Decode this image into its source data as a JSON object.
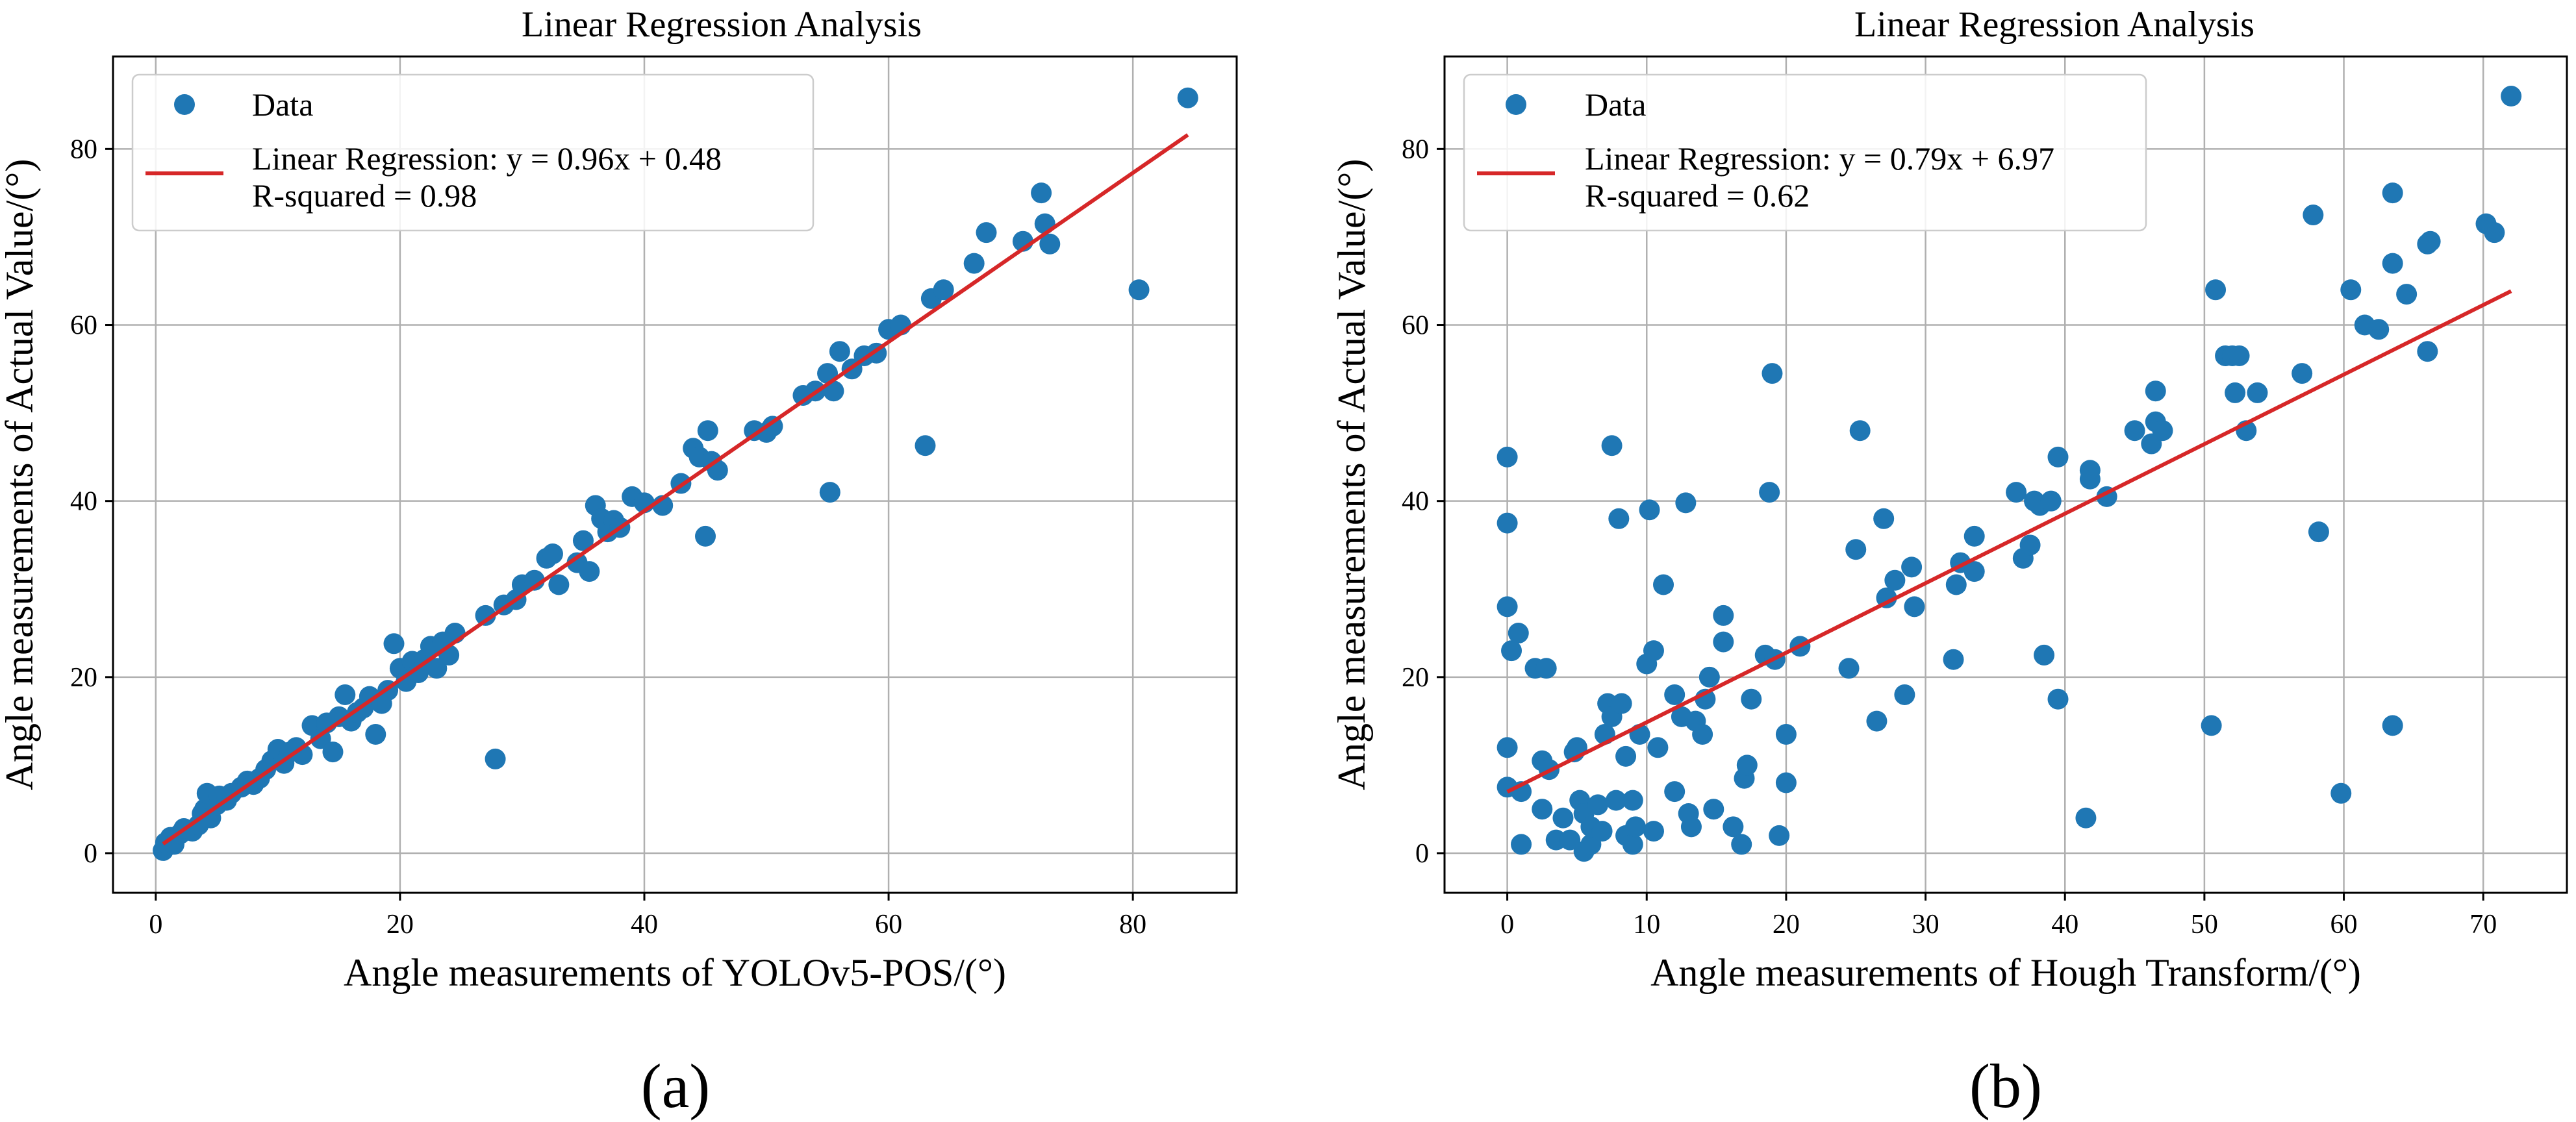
{
  "chart_data": [
    {
      "type": "scatter",
      "panel_label": "(a)",
      "title": "Linear Regression Analysis",
      "xlabel": "Angle measurements of YOLOv5-POS/(°)",
      "ylabel": "Angle measurements of Actual Value/(°)",
      "xlim": [
        -3.5,
        88.5
      ],
      "ylim": [
        -4.5,
        90.5
      ],
      "xticks": [
        0,
        20,
        40,
        60,
        80
      ],
      "yticks": [
        0,
        20,
        40,
        60,
        80
      ],
      "grid": true,
      "legend_position": "top-left",
      "legend": {
        "data_label": "Data",
        "fit_label": "Linear Regression: y = 0.96x + 0.48",
        "r2_label": "R-squared = 0.98"
      },
      "series": [
        {
          "name": "Data",
          "color": "#1f77b4",
          "points": [
            [
              0.6,
              0.3
            ],
            [
              0.8,
              1.2
            ],
            [
              1.2,
              1.8
            ],
            [
              1.5,
              1.0
            ],
            [
              2.0,
              2.2
            ],
            [
              2.3,
              2.8
            ],
            [
              3.0,
              2.5
            ],
            [
              3.5,
              3.2
            ],
            [
              3.8,
              4.5
            ],
            [
              4.0,
              5.0
            ],
            [
              4.2,
              6.8
            ],
            [
              4.5,
              4.0
            ],
            [
              5.0,
              5.5
            ],
            [
              5.2,
              6.5
            ],
            [
              5.8,
              6.0
            ],
            [
              6.2,
              6.8
            ],
            [
              7.0,
              7.5
            ],
            [
              7.5,
              8.2
            ],
            [
              8.0,
              7.8
            ],
            [
              8.5,
              8.5
            ],
            [
              9.0,
              9.5
            ],
            [
              9.5,
              10.5
            ],
            [
              10.0,
              11.8
            ],
            [
              10.5,
              10.2
            ],
            [
              11.0,
              11.5
            ],
            [
              11.5,
              12.0
            ],
            [
              12.0,
              11.2
            ],
            [
              12.8,
              14.5
            ],
            [
              13.5,
              13.0
            ],
            [
              14.0,
              14.8
            ],
            [
              14.5,
              11.5
            ],
            [
              15.0,
              15.5
            ],
            [
              15.5,
              18.0
            ],
            [
              16.0,
              15.0
            ],
            [
              16.5,
              16.0
            ],
            [
              17.0,
              16.5
            ],
            [
              17.5,
              17.8
            ],
            [
              18.0,
              13.5
            ],
            [
              18.5,
              17.0
            ],
            [
              19.0,
              18.5
            ],
            [
              19.5,
              23.8
            ],
            [
              20.0,
              21.0
            ],
            [
              20.5,
              19.5
            ],
            [
              21.0,
              21.8
            ],
            [
              21.5,
              20.5
            ],
            [
              22.0,
              22.0
            ],
            [
              22.5,
              23.5
            ],
            [
              23.0,
              21.0
            ],
            [
              23.5,
              24.0
            ],
            [
              24.0,
              22.5
            ],
            [
              24.5,
              25.0
            ],
            [
              27.0,
              27.0
            ],
            [
              27.8,
              10.7
            ],
            [
              28.5,
              28.2
            ],
            [
              29.5,
              28.8
            ],
            [
              30.0,
              30.5
            ],
            [
              31.0,
              31.0
            ],
            [
              32.0,
              33.5
            ],
            [
              32.5,
              34.0
            ],
            [
              33.0,
              30.5
            ],
            [
              34.5,
              33.0
            ],
            [
              35.0,
              35.5
            ],
            [
              35.5,
              32.0
            ],
            [
              36.0,
              39.5
            ],
            [
              36.5,
              38.0
            ],
            [
              37.0,
              36.5
            ],
            [
              37.5,
              37.8
            ],
            [
              38.0,
              37.0
            ],
            [
              39.0,
              40.5
            ],
            [
              40.0,
              39.8
            ],
            [
              41.5,
              39.5
            ],
            [
              43.0,
              42.0
            ],
            [
              44.0,
              46.0
            ],
            [
              44.5,
              45.0
            ],
            [
              45.0,
              36.0
            ],
            [
              45.2,
              48.0
            ],
            [
              45.5,
              44.5
            ],
            [
              46.0,
              43.5
            ],
            [
              49.0,
              48.0
            ],
            [
              50.0,
              47.8
            ],
            [
              50.5,
              48.5
            ],
            [
              53.0,
              52.0
            ],
            [
              54.0,
              52.5
            ],
            [
              55.0,
              54.5
            ],
            [
              55.2,
              41.0
            ],
            [
              55.5,
              52.5
            ],
            [
              56.0,
              57.0
            ],
            [
              57.0,
              55.0
            ],
            [
              58.0,
              56.5
            ],
            [
              59.0,
              56.8
            ],
            [
              60.0,
              59.5
            ],
            [
              61.0,
              60.0
            ],
            [
              63.0,
              46.3
            ],
            [
              63.5,
              63.0
            ],
            [
              64.5,
              64.0
            ],
            [
              67.0,
              67.0
            ],
            [
              68.0,
              70.5
            ],
            [
              71.0,
              69.5
            ],
            [
              72.5,
              75.0
            ],
            [
              72.8,
              71.5
            ],
            [
              73.2,
              69.2
            ],
            [
              80.5,
              64.0
            ],
            [
              84.5,
              85.8
            ]
          ]
        },
        {
          "name": "Linear Regression",
          "color": "#d62728",
          "line": {
            "slope": 0.96,
            "intercept": 0.48,
            "x_start": 0.6,
            "x_end": 84.5
          }
        }
      ]
    },
    {
      "type": "scatter",
      "panel_label": "(b)",
      "title": "Linear Regression Analysis",
      "xlabel": "Angle measurements of Hough Transform/(°)",
      "ylabel": "Angle measurements of Actual Value/(°)",
      "xlim": [
        -4.5,
        76.0
      ],
      "ylim": [
        -4.5,
        90.5
      ],
      "xticks": [
        0,
        10,
        20,
        30,
        40,
        50,
        60,
        70
      ],
      "yticks": [
        0,
        20,
        40,
        60,
        80
      ],
      "grid": true,
      "legend_position": "top-left",
      "legend": {
        "data_label": "Data",
        "fit_label": "Linear Regression: y = 0.79x + 6.97",
        "r2_label": "R-squared = 0.62"
      },
      "series": [
        {
          "name": "Data",
          "color": "#1f77b4",
          "points": [
            [
              0.0,
              45.0
            ],
            [
              0.0,
              37.5
            ],
            [
              0.0,
              28.0
            ],
            [
              0.3,
              23.0
            ],
            [
              0.0,
              12.0
            ],
            [
              0.0,
              7.5
            ],
            [
              0.8,
              25.0
            ],
            [
              1.0,
              7.0
            ],
            [
              1.0,
              1.0
            ],
            [
              2.0,
              21.0
            ],
            [
              2.5,
              10.5
            ],
            [
              2.8,
              21.0
            ],
            [
              2.5,
              5.0
            ],
            [
              3.0,
              9.5
            ],
            [
              3.5,
              1.5
            ],
            [
              4.0,
              4.0
            ],
            [
              4.5,
              1.5
            ],
            [
              4.8,
              11.5
            ],
            [
              5.0,
              12.0
            ],
            [
              5.2,
              6.0
            ],
            [
              5.5,
              4.5
            ],
            [
              5.5,
              0.2
            ],
            [
              6.0,
              1.0
            ],
            [
              6.0,
              3.0
            ],
            [
              6.5,
              5.5
            ],
            [
              6.8,
              2.5
            ],
            [
              7.0,
              13.5
            ],
            [
              7.2,
              17.0
            ],
            [
              7.5,
              46.3
            ],
            [
              7.5,
              15.5
            ],
            [
              7.8,
              6.0
            ],
            [
              8.0,
              38.0
            ],
            [
              8.2,
              17.0
            ],
            [
              8.5,
              11.0
            ],
            [
              8.5,
              2.0
            ],
            [
              9.0,
              6.0
            ],
            [
              9.0,
              1.0
            ],
            [
              9.2,
              3.0
            ],
            [
              9.5,
              13.5
            ],
            [
              10.0,
              21.5
            ],
            [
              10.2,
              39.0
            ],
            [
              10.5,
              23.0
            ],
            [
              10.5,
              2.5
            ],
            [
              10.8,
              12.0
            ],
            [
              11.2,
              30.5
            ],
            [
              12.0,
              18.0
            ],
            [
              12.0,
              7.0
            ],
            [
              12.5,
              15.5
            ],
            [
              12.8,
              39.8
            ],
            [
              13.0,
              4.5
            ],
            [
              13.2,
              3.0
            ],
            [
              13.5,
              15.0
            ],
            [
              14.0,
              13.5
            ],
            [
              14.2,
              17.5
            ],
            [
              14.5,
              20.0
            ],
            [
              14.8,
              5.0
            ],
            [
              15.5,
              24.0
            ],
            [
              15.5,
              27.0
            ],
            [
              16.2,
              3.0
            ],
            [
              16.8,
              1.0
            ],
            [
              17.0,
              8.5
            ],
            [
              17.2,
              10.0
            ],
            [
              17.5,
              17.5
            ],
            [
              18.5,
              22.5
            ],
            [
              18.8,
              41.0
            ],
            [
              19.0,
              54.5
            ],
            [
              19.2,
              22.0
            ],
            [
              19.5,
              2.0
            ],
            [
              20.0,
              13.5
            ],
            [
              20.0,
              8.0
            ],
            [
              21.0,
              23.5
            ],
            [
              24.5,
              21.0
            ],
            [
              25.0,
              34.5
            ],
            [
              25.3,
              48.0
            ],
            [
              26.5,
              15.0
            ],
            [
              27.0,
              38.0
            ],
            [
              27.2,
              29.0
            ],
            [
              27.8,
              31.0
            ],
            [
              28.5,
              18.0
            ],
            [
              29.0,
              32.5
            ],
            [
              29.2,
              28.0
            ],
            [
              32.0,
              22.0
            ],
            [
              32.2,
              30.5
            ],
            [
              32.5,
              33.0
            ],
            [
              33.5,
              36.0
            ],
            [
              33.5,
              32.0
            ],
            [
              36.5,
              41.0
            ],
            [
              37.0,
              33.5
            ],
            [
              37.5,
              35.0
            ],
            [
              37.8,
              40.0
            ],
            [
              38.2,
              39.5
            ],
            [
              38.5,
              22.5
            ],
            [
              39.0,
              40.0
            ],
            [
              39.5,
              45.0
            ],
            [
              39.5,
              17.5
            ],
            [
              41.5,
              4.0
            ],
            [
              41.8,
              42.5
            ],
            [
              41.8,
              43.5
            ],
            [
              43.0,
              40.5
            ],
            [
              45.0,
              48.0
            ],
            [
              46.2,
              46.5
            ],
            [
              46.5,
              52.5
            ],
            [
              46.5,
              49.0
            ],
            [
              47.0,
              48.0
            ],
            [
              50.5,
              14.5
            ],
            [
              50.8,
              64.0
            ],
            [
              51.5,
              56.5
            ],
            [
              52.0,
              56.5
            ],
            [
              52.2,
              52.3
            ],
            [
              52.5,
              56.5
            ],
            [
              53.0,
              48.0
            ],
            [
              53.8,
              52.3
            ],
            [
              57.0,
              54.5
            ],
            [
              57.8,
              72.5
            ],
            [
              58.2,
              36.5
            ],
            [
              59.8,
              6.8
            ],
            [
              60.5,
              64.0
            ],
            [
              61.5,
              60.0
            ],
            [
              62.5,
              59.5
            ],
            [
              63.5,
              75.0
            ],
            [
              63.5,
              67.0
            ],
            [
              63.5,
              14.5
            ],
            [
              64.5,
              63.5
            ],
            [
              66.0,
              57.0
            ],
            [
              66.0,
              69.2
            ],
            [
              66.2,
              69.5
            ],
            [
              70.2,
              71.5
            ],
            [
              70.8,
              70.5
            ],
            [
              72.0,
              86.0
            ]
          ]
        },
        {
          "name": "Linear Regression",
          "color": "#d62728",
          "line": {
            "slope": 0.79,
            "intercept": 6.97,
            "x_start": 0.0,
            "x_end": 72.0
          }
        }
      ]
    }
  ]
}
